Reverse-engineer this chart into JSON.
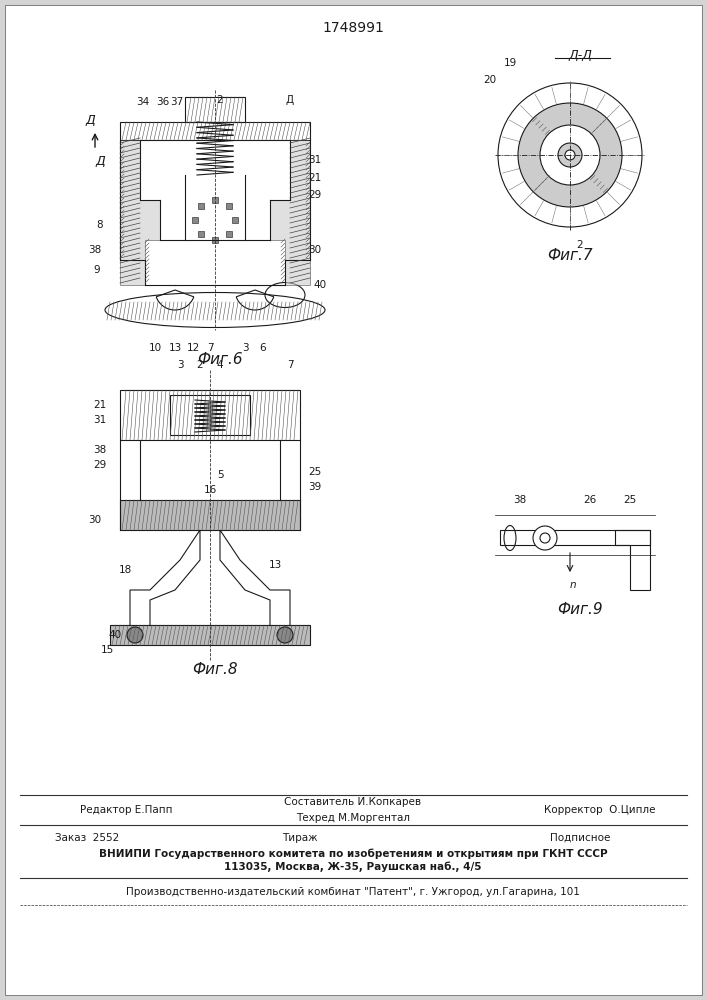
{
  "patent_number": "1748991",
  "background_color": "#e8e8e8",
  "line_color": "#1a1a1a",
  "hatch_color": "#333333",
  "fig6_caption": "Фиг.6",
  "fig7_caption": "Фиг.7",
  "fig8_caption": "Фиг.8",
  "fig9_caption": "Фиг.9",
  "section_label": "Д-Д",
  "editor_line": "Редактор Е.Папп",
  "composer_line": "Составитель И.Копкарев",
  "techred_line": "Техред М.Моргентал",
  "corrector_line": "Корректор  О.Ципле",
  "order_line": "Заказ  2552",
  "tirazh_line": "Тираж",
  "podpisnoe_line": "Подписное",
  "vniip_line": "ВНИИПИ Государственного комитета по изобретениям и открытиям при ГКНТ СССР",
  "address_line": "113035, Москва, Ж-35, Раушская наб., 4/5",
  "factory_line": "Производственно-издательский комбинат \"Патент\", г. Ужгород, ул.Гагарина, 101"
}
